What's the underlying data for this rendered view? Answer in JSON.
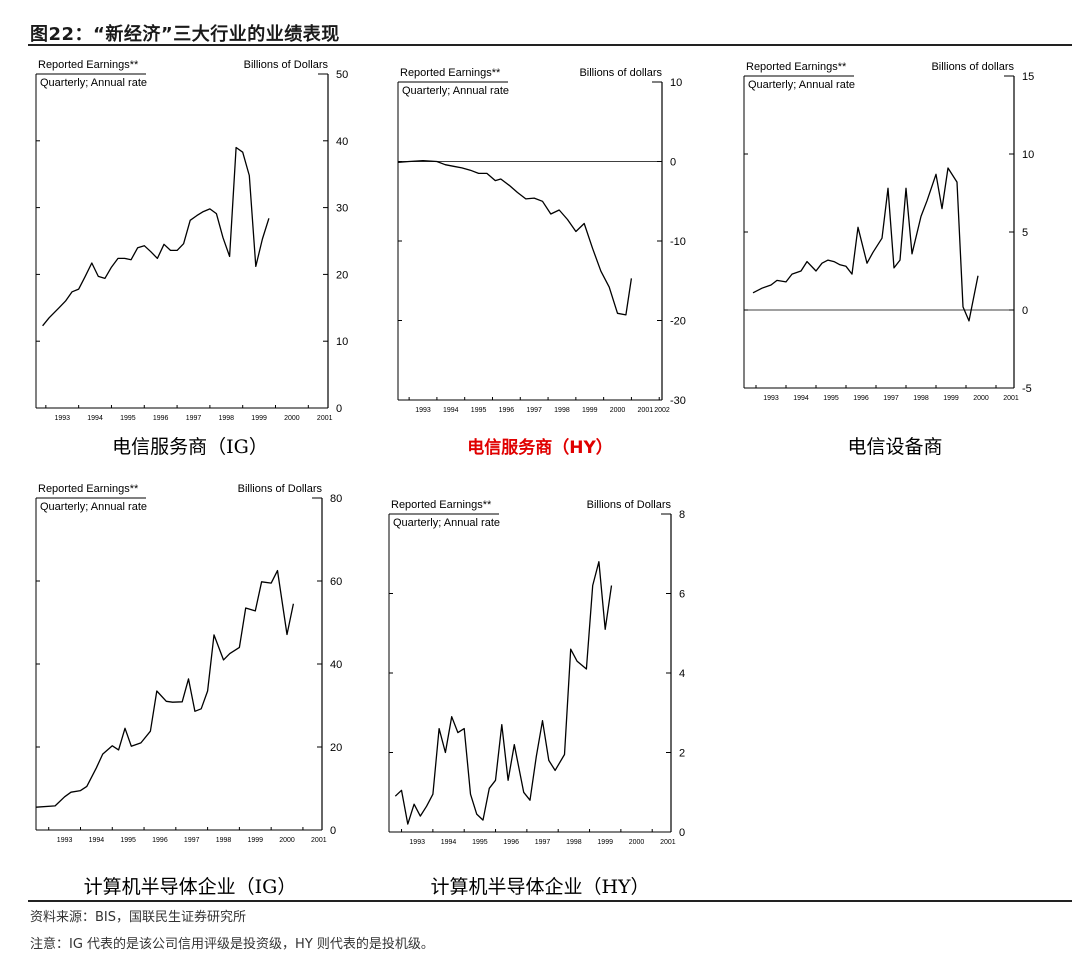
{
  "figure": {
    "title": "图22：“新经济”三大行业的业绩表现"
  },
  "source_note": "资料来源：BIS，国联民生证券研究所",
  "footnote": "注意：IG 代表的是该公司信用评级是投资级，HY 则代表的是投机级。",
  "chart_data": [
    {
      "id": "tel-ig",
      "caption": "电信服务商（IG）",
      "caption_color": "#000000",
      "type": "line",
      "label_left": "Reported Earnings**",
      "label_sub": "Quarterly; Annual rate",
      "label_right": "Billions of Dollars",
      "yticks": [
        0,
        10,
        20,
        30,
        40,
        50
      ],
      "ylim": [
        0,
        50
      ],
      "xticks": [
        "1993",
        "1994",
        "1995",
        "1996",
        "1997",
        "1998",
        "1999",
        "2000",
        "2001"
      ],
      "xlim": [
        1992.7,
        2001.6
      ],
      "zero_line": false,
      "x": [
        1992.9,
        1993.1,
        1993.4,
        1993.6,
        1993.8,
        1994.0,
        1994.2,
        1994.4,
        1994.6,
        1994.8,
        1995.0,
        1995.2,
        1995.4,
        1995.6,
        1995.8,
        1996.0,
        1996.2,
        1996.4,
        1996.6,
        1996.8,
        1997.0,
        1997.2,
        1997.4,
        1997.6,
        1997.8,
        1998.0,
        1998.2,
        1998.4,
        1998.6,
        1998.8,
        1999.0,
        1999.2,
        1999.4,
        1999.6,
        1999.8,
        2000.0,
        2000.2,
        2000.4,
        2000.6,
        2000.8,
        2001.0
      ],
      "y": [
        12.3,
        13.5,
        15.0,
        16.0,
        17.4,
        17.8,
        19.7,
        21.7,
        19.7,
        19.4,
        21.1,
        22.4,
        22.4,
        22.2,
        24.0,
        24.3,
        23.4,
        22.4,
        24.5,
        23.6,
        23.6,
        24.6,
        28.1,
        28.8,
        29.4,
        29.8,
        29.1,
        25.5,
        22.7,
        39.0,
        38.3,
        34.8,
        21.2,
        25.3,
        28.4,
        null,
        null,
        null,
        null,
        null,
        null
      ]
    },
    {
      "id": "tel-hy",
      "caption": "电信服务商（HY）",
      "caption_color": "#e00000",
      "type": "line",
      "label_left": "Reported Earnings**",
      "label_sub": "Quarterly; Annual rate",
      "label_right": "Billions of dollars",
      "yticks": [
        -30,
        -20,
        -10,
        0,
        10
      ],
      "ylim": [
        -30,
        10
      ],
      "xticks": [
        "1993",
        "1994",
        "1995",
        "1996",
        "1997",
        "1998",
        "1999",
        "2000",
        "2001",
        "2002"
      ],
      "xlim": [
        1992.6,
        2002.1
      ],
      "zero_line": true,
      "x": [
        1992.6,
        1993.0,
        1993.5,
        1994.0,
        1994.3,
        1994.6,
        1994.9,
        1995.2,
        1995.5,
        1995.8,
        1996.1,
        1996.3,
        1996.6,
        1996.9,
        1997.2,
        1997.5,
        1997.8,
        1998.1,
        1998.4,
        1998.7,
        1999.0,
        1999.3,
        1999.6,
        1999.9,
        2000.2,
        2000.5,
        2000.8,
        2001.0
      ],
      "y": [
        -0.1,
        0.0,
        0.1,
        0.0,
        -0.4,
        -0.6,
        -0.8,
        -1.1,
        -1.5,
        -1.5,
        -2.4,
        -2.2,
        -3.0,
        -3.9,
        -4.7,
        -4.6,
        -5.0,
        -6.6,
        -6.1,
        -7.3,
        -8.8,
        -7.8,
        -10.9,
        -13.8,
        -15.8,
        -19.1,
        -19.3,
        -14.7
      ]
    },
    {
      "id": "tel-equip",
      "caption": "电信设备商",
      "caption_color": "#000000",
      "type": "line",
      "label_left": "Reported Earnings**",
      "label_sub": "Quarterly; Annual rate",
      "label_right": "Billions of dollars",
      "yticks": [
        -5,
        0,
        5,
        10,
        15
      ],
      "ylim": [
        -5,
        15
      ],
      "xticks": [
        "1993",
        "1994",
        "1995",
        "1996",
        "1997",
        "1998",
        "1999",
        "2000",
        "2001"
      ],
      "xlim": [
        1992.6,
        2001.6
      ],
      "zero_line": true,
      "x": [
        1992.9,
        1993.2,
        1993.5,
        1993.7,
        1994.0,
        1994.2,
        1994.5,
        1994.7,
        1995.0,
        1995.2,
        1995.4,
        1995.6,
        1995.8,
        1996.0,
        1996.2,
        1996.4,
        1996.7,
        1996.9,
        1997.2,
        1997.4,
        1997.6,
        1997.8,
        1998.0,
        1998.2,
        1998.5,
        1998.7,
        1999.0,
        1999.2,
        1999.4,
        1999.7,
        1999.9,
        2000.1,
        2000.4,
        2000.6,
        2000.9
      ],
      "y": [
        1.1,
        1.4,
        1.6,
        1.9,
        1.8,
        2.3,
        2.5,
        3.1,
        2.5,
        3.0,
        3.2,
        3.1,
        2.9,
        2.8,
        2.3,
        5.3,
        3.0,
        3.7,
        4.6,
        7.8,
        2.7,
        3.2,
        7.8,
        3.6,
        6.0,
        7.0,
        8.7,
        6.5,
        9.1,
        8.2,
        0.2,
        -0.7,
        2.2,
        null,
        null
      ]
    },
    {
      "id": "semi-ig",
      "caption": "计算机半导体企业（IG）",
      "caption_color": "#000000",
      "type": "line",
      "label_left": "Reported Earnings**",
      "label_sub": "Quarterly; Annual rate",
      "label_right": "Billions of Dollars",
      "yticks": [
        0,
        20,
        40,
        60,
        80
      ],
      "ylim": [
        0,
        80
      ],
      "xticks": [
        "1993",
        "1994",
        "1995",
        "1996",
        "1997",
        "1998",
        "1999",
        "2000",
        "2001"
      ],
      "xlim": [
        1992.6,
        2001.6
      ],
      "zero_line": false,
      "x": [
        1992.6,
        1993.2,
        1993.5,
        1993.7,
        1994.0,
        1994.2,
        1994.5,
        1994.7,
        1995.0,
        1995.2,
        1995.4,
        1995.6,
        1995.9,
        1996.2,
        1996.4,
        1996.7,
        1996.9,
        1997.2,
        1997.4,
        1997.6,
        1997.8,
        1998.0,
        1998.2,
        1998.5,
        1998.7,
        1999.0,
        1999.2,
        1999.5,
        1999.7,
        2000.0,
        2000.2,
        2000.5,
        2000.7,
        2000.9
      ],
      "y": [
        5.5,
        5.8,
        8.0,
        9.1,
        9.5,
        10.5,
        15.0,
        18.3,
        20.3,
        19.3,
        24.5,
        20.2,
        21.0,
        23.8,
        33.5,
        31.0,
        30.8,
        30.9,
        36.4,
        28.6,
        29.2,
        33.5,
        47.0,
        41.0,
        42.5,
        44.0,
        53.5,
        52.8,
        59.8,
        59.5,
        62.5,
        47.1,
        54.5,
        null
      ]
    },
    {
      "id": "semi-hy",
      "caption": "计算机半导体企业（HY）",
      "caption_color": "#000000",
      "type": "line",
      "label_left": "Reported Earnings**",
      "label_sub": "Quarterly; Annual rate",
      "label_right": "Billions of Dollars",
      "yticks": [
        0,
        2,
        4,
        6,
        8
      ],
      "ylim": [
        0,
        8
      ],
      "xticks": [
        "1993",
        "1994",
        "1995",
        "1996",
        "1997",
        "1998",
        "1999",
        "2000",
        "2001"
      ],
      "xlim": [
        1992.6,
        2001.6
      ],
      "zero_line": false,
      "x": [
        1992.8,
        1993.0,
        1993.2,
        1993.4,
        1993.6,
        1993.8,
        1994.0,
        1994.2,
        1994.4,
        1994.6,
        1994.8,
        1995.0,
        1995.2,
        1995.4,
        1995.6,
        1995.8,
        1996.0,
        1996.2,
        1996.4,
        1996.6,
        1996.9,
        1997.1,
        1997.3,
        1997.5,
        1997.7,
        1997.9,
        1998.2,
        1998.4,
        1998.6,
        1998.9,
        1999.1,
        1999.3,
        1999.5,
        1999.7,
        2000.0,
        2000.2,
        2000.4,
        2000.6,
        2000.8
      ],
      "y": [
        0.9,
        1.05,
        0.2,
        0.7,
        0.4,
        0.65,
        0.95,
        2.6,
        2.0,
        2.9,
        2.5,
        2.6,
        0.95,
        0.45,
        0.3,
        1.1,
        1.3,
        2.7,
        1.3,
        2.2,
        1.0,
        0.8,
        1.9,
        2.8,
        1.8,
        1.55,
        1.95,
        4.6,
        4.3,
        4.1,
        6.2,
        6.8,
        5.1,
        6.2,
        null,
        null,
        null,
        null,
        null
      ]
    }
  ]
}
